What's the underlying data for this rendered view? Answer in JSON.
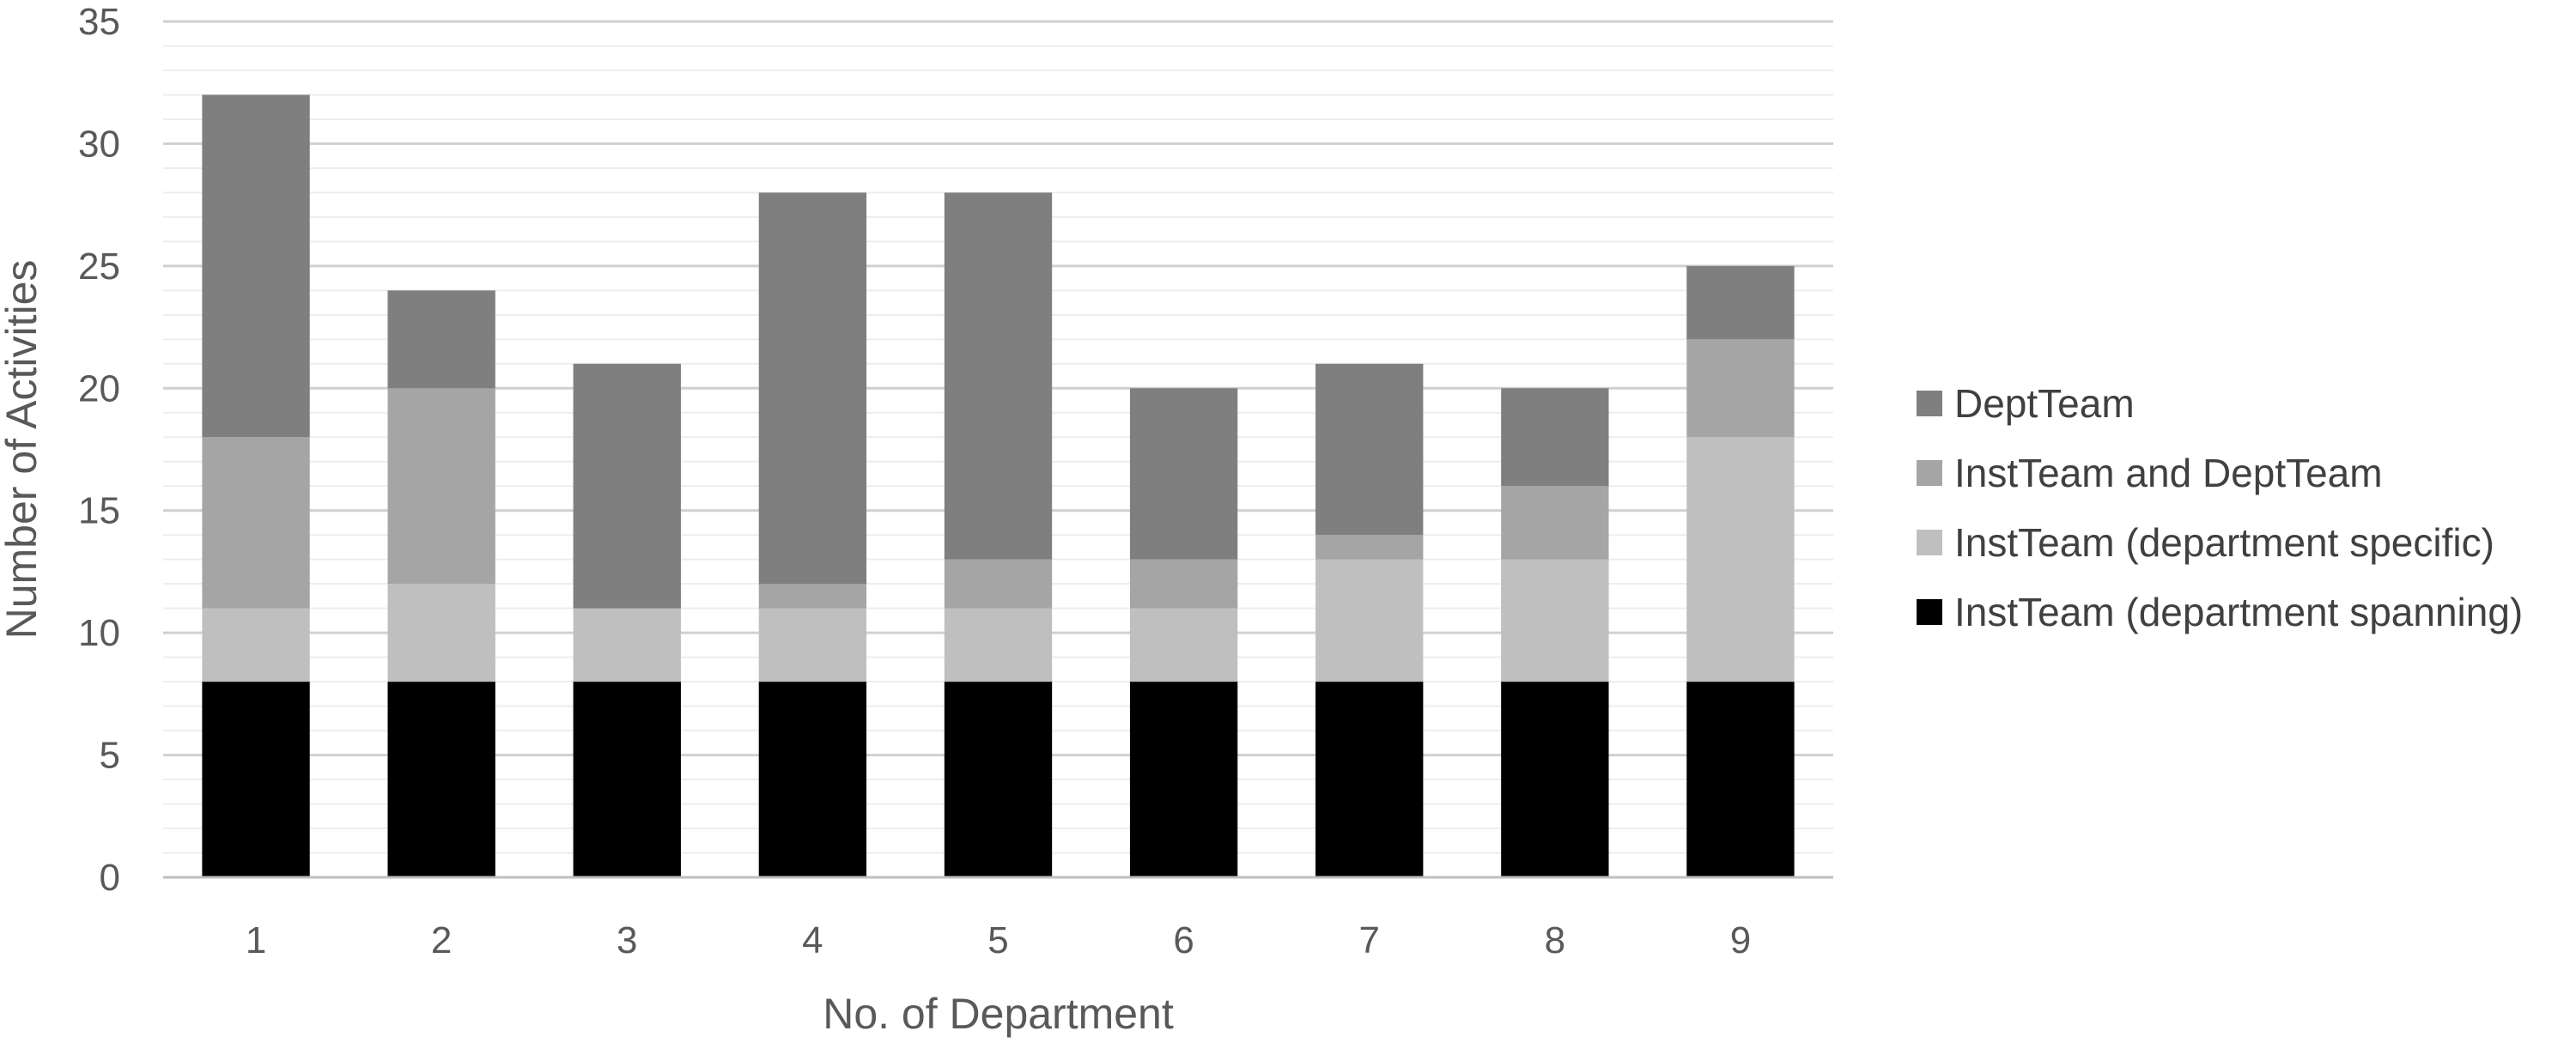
{
  "chart_data": {
    "type": "bar",
    "stacked": true,
    "xlabel": "No. of Department",
    "ylabel": "Number of Activities",
    "categories": [
      "1",
      "2",
      "3",
      "4",
      "5",
      "6",
      "7",
      "8",
      "9"
    ],
    "ylim": [
      0,
      35
    ],
    "yticks": [
      0,
      5,
      10,
      15,
      20,
      25,
      30,
      35
    ],
    "grid": "major and minor horizontal",
    "legend_position": "right",
    "series": [
      {
        "name": "InstTeam (department spanning)",
        "color": "#000000",
        "values": [
          8,
          8,
          8,
          8,
          8,
          8,
          8,
          8,
          8
        ]
      },
      {
        "name": "InstTeam (department specific)",
        "color": "#bfbfbf",
        "values": [
          3,
          4,
          3,
          3,
          3,
          3,
          5,
          5,
          10
        ]
      },
      {
        "name": "InstTeam and DeptTeam",
        "color": "#a5a5a5",
        "values": [
          7,
          8,
          0,
          1,
          2,
          2,
          1,
          3,
          4
        ]
      },
      {
        "name": "DeptTeam",
        "color": "#7f7f7f",
        "values": [
          14,
          4,
          10,
          16,
          15,
          7,
          7,
          4,
          3
        ]
      }
    ],
    "legend_order": [
      "DeptTeam",
      "InstTeam and DeptTeam",
      "InstTeam (department specific)",
      "InstTeam (department spanning)"
    ]
  }
}
